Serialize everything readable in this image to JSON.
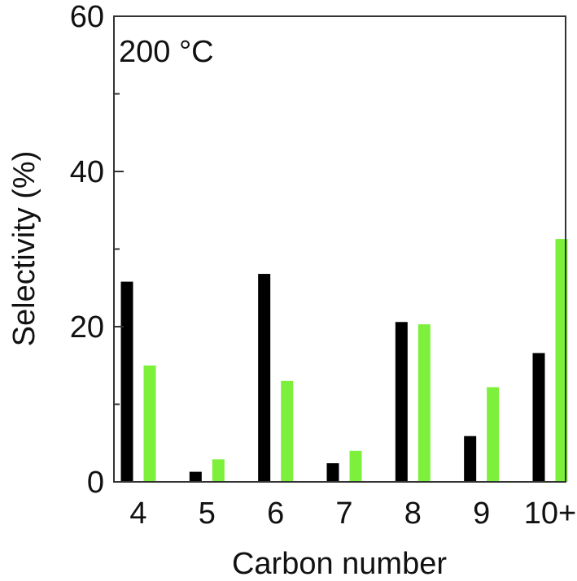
{
  "chart_data": {
    "type": "bar",
    "annotation": "200 °C",
    "xlabel": "Carbon number",
    "ylabel": "Selectivity (%)",
    "ylim": [
      0,
      60
    ],
    "y_major_ticks": [
      0,
      20,
      40,
      60
    ],
    "y_minor_ticks": [
      10,
      30,
      50
    ],
    "categories": [
      "4",
      "5",
      "6",
      "7",
      "8",
      "9",
      "10+"
    ],
    "series": [
      {
        "color": "#000000",
        "values": [
          25.8,
          1.3,
          26.8,
          2.4,
          20.6,
          5.9,
          16.6
        ]
      },
      {
        "color": "#7cf03a",
        "values": [
          15.0,
          2.9,
          13.0,
          4.0,
          20.3,
          12.2,
          31.3
        ]
      }
    ],
    "grid": false,
    "legend": "none"
  }
}
